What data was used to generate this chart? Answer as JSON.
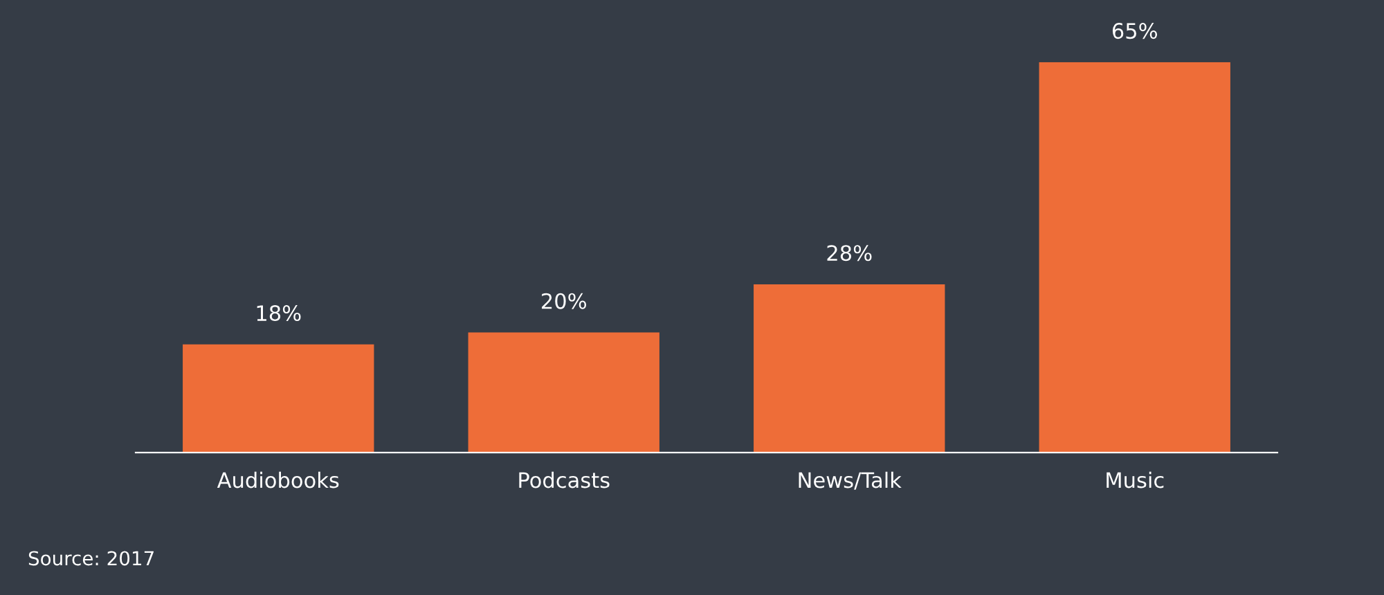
{
  "chart_data": {
    "type": "bar",
    "categories": [
      "Audiobooks",
      "Podcasts",
      "News/Talk",
      "Music"
    ],
    "values": [
      18,
      20,
      28,
      65
    ],
    "value_labels": [
      "18%",
      "20%",
      "28%",
      "65%"
    ],
    "color": "#ee6d38",
    "grid": false,
    "annotations": [
      "Source: 2017"
    ]
  }
}
